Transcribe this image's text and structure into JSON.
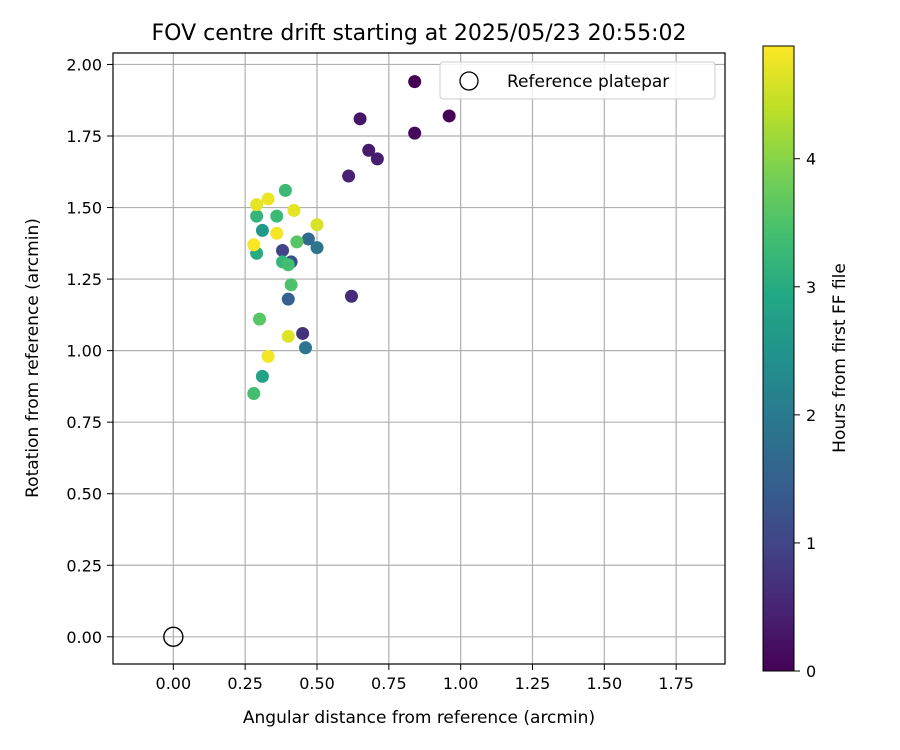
{
  "chart_data": {
    "type": "scatter",
    "title": "FOV centre drift starting at 2025/05/23 20:55:02",
    "xlabel": "Angular distance from reference (arcmin)",
    "ylabel": "Rotation from reference (arcmin)",
    "xlim": [
      -0.21,
      1.92
    ],
    "ylim": [
      -0.095,
      2.04
    ],
    "xticks": [
      "0.00",
      "0.25",
      "0.50",
      "0.75",
      "1.00",
      "1.25",
      "1.50",
      "1.75"
    ],
    "yticks": [
      "0.00",
      "0.25",
      "0.50",
      "0.75",
      "1.00",
      "1.25",
      "1.50",
      "1.75",
      "2.00"
    ],
    "grid": true,
    "legend": {
      "position": "top-right",
      "label": "Reference platepar",
      "marker": "open-circle"
    },
    "reference_point": {
      "x": 0.0,
      "y": 0.0
    },
    "colorbar": {
      "label": "Hours from first FF file",
      "range": [
        0,
        4.88
      ],
      "ticks": [
        "0",
        "1",
        "2",
        "3",
        "4"
      ],
      "colormap": "viridis"
    },
    "points": [
      {
        "x": 0.84,
        "y": 1.94,
        "c": 0.0
      },
      {
        "x": 0.96,
        "y": 1.82,
        "c": 0.05
      },
      {
        "x": 0.84,
        "y": 1.76,
        "c": 0.1
      },
      {
        "x": 0.65,
        "y": 1.81,
        "c": 0.3
      },
      {
        "x": 0.68,
        "y": 1.7,
        "c": 0.35
      },
      {
        "x": 0.71,
        "y": 1.67,
        "c": 0.4
      },
      {
        "x": 0.61,
        "y": 1.61,
        "c": 0.45
      },
      {
        "x": 0.62,
        "y": 1.19,
        "c": 0.6
      },
      {
        "x": 0.45,
        "y": 1.06,
        "c": 0.7
      },
      {
        "x": 0.38,
        "y": 1.35,
        "c": 1.0
      },
      {
        "x": 0.41,
        "y": 1.31,
        "c": 1.2
      },
      {
        "x": 0.4,
        "y": 1.18,
        "c": 1.5
      },
      {
        "x": 0.47,
        "y": 1.39,
        "c": 1.7
      },
      {
        "x": 0.5,
        "y": 1.36,
        "c": 1.9
      },
      {
        "x": 0.46,
        "y": 1.01,
        "c": 1.9
      },
      {
        "x": 0.31,
        "y": 1.42,
        "c": 2.6
      },
      {
        "x": 0.31,
        "y": 0.91,
        "c": 2.8
      },
      {
        "x": 0.29,
        "y": 1.34,
        "c": 3.0
      },
      {
        "x": 0.29,
        "y": 1.47,
        "c": 3.2
      },
      {
        "x": 0.39,
        "y": 1.56,
        "c": 3.3
      },
      {
        "x": 0.36,
        "y": 1.47,
        "c": 3.3
      },
      {
        "x": 0.38,
        "y": 1.31,
        "c": 3.2
      },
      {
        "x": 0.4,
        "y": 1.3,
        "c": 3.4
      },
      {
        "x": 0.41,
        "y": 1.23,
        "c": 3.5
      },
      {
        "x": 0.43,
        "y": 1.38,
        "c": 3.6
      },
      {
        "x": 0.28,
        "y": 0.85,
        "c": 3.4
      },
      {
        "x": 0.3,
        "y": 1.11,
        "c": 3.6
      },
      {
        "x": 0.29,
        "y": 1.51,
        "c": 4.7
      },
      {
        "x": 0.33,
        "y": 1.53,
        "c": 4.75
      },
      {
        "x": 0.42,
        "y": 1.49,
        "c": 4.7
      },
      {
        "x": 0.36,
        "y": 1.41,
        "c": 4.8
      },
      {
        "x": 0.28,
        "y": 1.37,
        "c": 4.85
      },
      {
        "x": 0.5,
        "y": 1.44,
        "c": 4.6
      },
      {
        "x": 0.4,
        "y": 1.05,
        "c": 4.65
      },
      {
        "x": 0.33,
        "y": 0.98,
        "c": 4.8
      }
    ]
  }
}
